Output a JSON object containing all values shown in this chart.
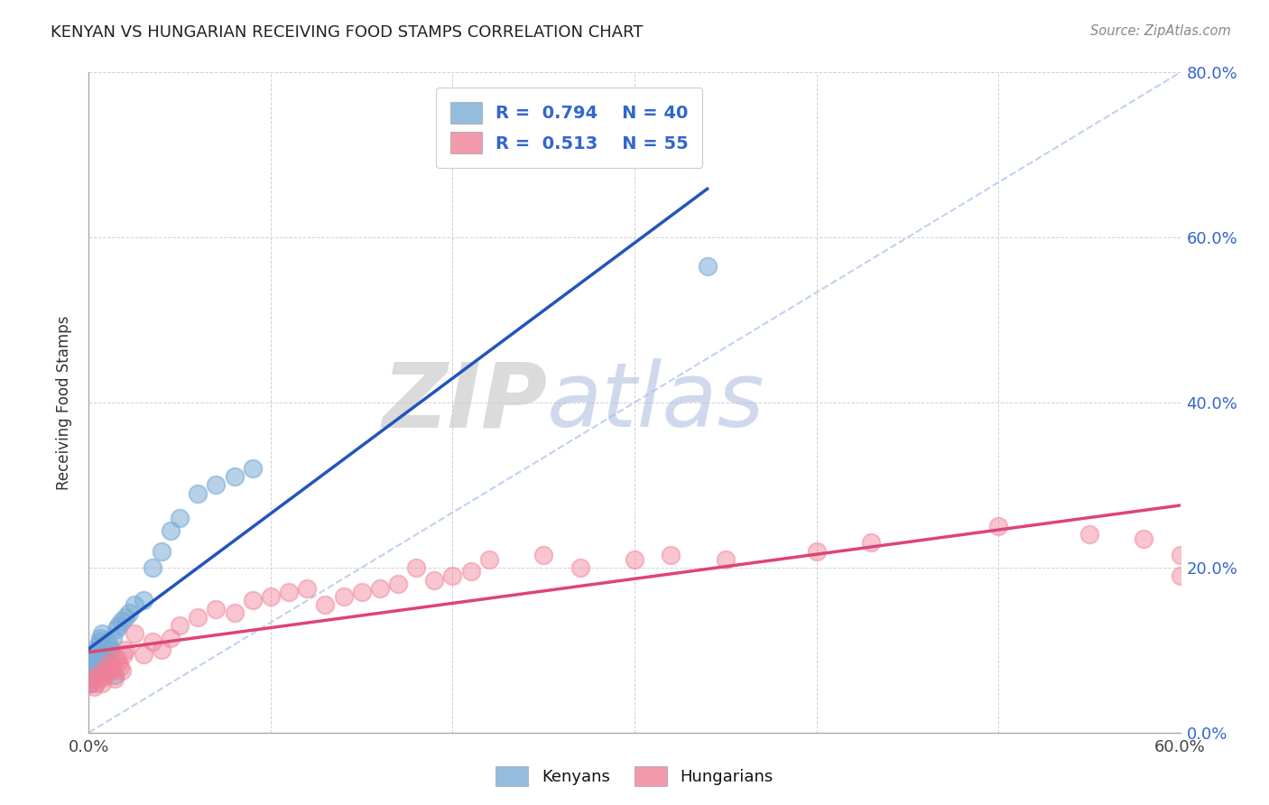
{
  "title": "KENYAN VS HUNGARIAN RECEIVING FOOD STAMPS CORRELATION CHART",
  "source": "Source: ZipAtlas.com",
  "ylabel": "Receiving Food Stamps",
  "xlim": [
    0.0,
    0.6
  ],
  "ylim": [
    0.0,
    0.8
  ],
  "kenyan_R": 0.794,
  "kenyan_N": 40,
  "hungarian_R": 0.513,
  "hungarian_N": 55,
  "kenyan_color": "#7aacd6",
  "hungarian_color": "#f08098",
  "kenyan_line_color": "#2255bb",
  "hungarian_line_color": "#dd4477",
  "diagonal_color": "#bbccee",
  "background_color": "#ffffff",
  "grid_color": "#cccccc",
  "watermark_zip": "ZIP",
  "watermark_atlas": "atlas",
  "kenyan_x": [
    0.001,
    0.002,
    0.002,
    0.003,
    0.003,
    0.004,
    0.004,
    0.005,
    0.005,
    0.005,
    0.006,
    0.006,
    0.007,
    0.007,
    0.008,
    0.008,
    0.009,
    0.009,
    0.01,
    0.01,
    0.011,
    0.012,
    0.013,
    0.014,
    0.015,
    0.016,
    0.018,
    0.02,
    0.022,
    0.025,
    0.03,
    0.035,
    0.04,
    0.045,
    0.05,
    0.06,
    0.07,
    0.08,
    0.09,
    0.34
  ],
  "kenyan_y": [
    0.06,
    0.065,
    0.07,
    0.075,
    0.08,
    0.085,
    0.09,
    0.095,
    0.1,
    0.105,
    0.11,
    0.115,
    0.12,
    0.08,
    0.1,
    0.09,
    0.085,
    0.095,
    0.075,
    0.11,
    0.105,
    0.1,
    0.115,
    0.07,
    0.125,
    0.13,
    0.135,
    0.14,
    0.145,
    0.155,
    0.16,
    0.2,
    0.22,
    0.245,
    0.26,
    0.29,
    0.3,
    0.31,
    0.32,
    0.565
  ],
  "hungarian_x": [
    0.001,
    0.002,
    0.003,
    0.004,
    0.005,
    0.006,
    0.007,
    0.008,
    0.009,
    0.01,
    0.011,
    0.012,
    0.013,
    0.014,
    0.015,
    0.016,
    0.017,
    0.018,
    0.019,
    0.02,
    0.025,
    0.03,
    0.035,
    0.04,
    0.045,
    0.05,
    0.06,
    0.07,
    0.08,
    0.09,
    0.1,
    0.11,
    0.12,
    0.13,
    0.14,
    0.15,
    0.16,
    0.17,
    0.18,
    0.19,
    0.2,
    0.21,
    0.22,
    0.25,
    0.27,
    0.3,
    0.32,
    0.35,
    0.4,
    0.43,
    0.5,
    0.55,
    0.58,
    0.6,
    0.6
  ],
  "hungarian_y": [
    0.06,
    0.065,
    0.055,
    0.06,
    0.07,
    0.065,
    0.06,
    0.075,
    0.07,
    0.08,
    0.085,
    0.075,
    0.08,
    0.065,
    0.09,
    0.085,
    0.08,
    0.075,
    0.095,
    0.1,
    0.12,
    0.095,
    0.11,
    0.1,
    0.115,
    0.13,
    0.14,
    0.15,
    0.145,
    0.16,
    0.165,
    0.17,
    0.175,
    0.155,
    0.165,
    0.17,
    0.175,
    0.18,
    0.2,
    0.185,
    0.19,
    0.195,
    0.21,
    0.215,
    0.2,
    0.21,
    0.215,
    0.21,
    0.22,
    0.23,
    0.25,
    0.24,
    0.235,
    0.19,
    0.215
  ]
}
